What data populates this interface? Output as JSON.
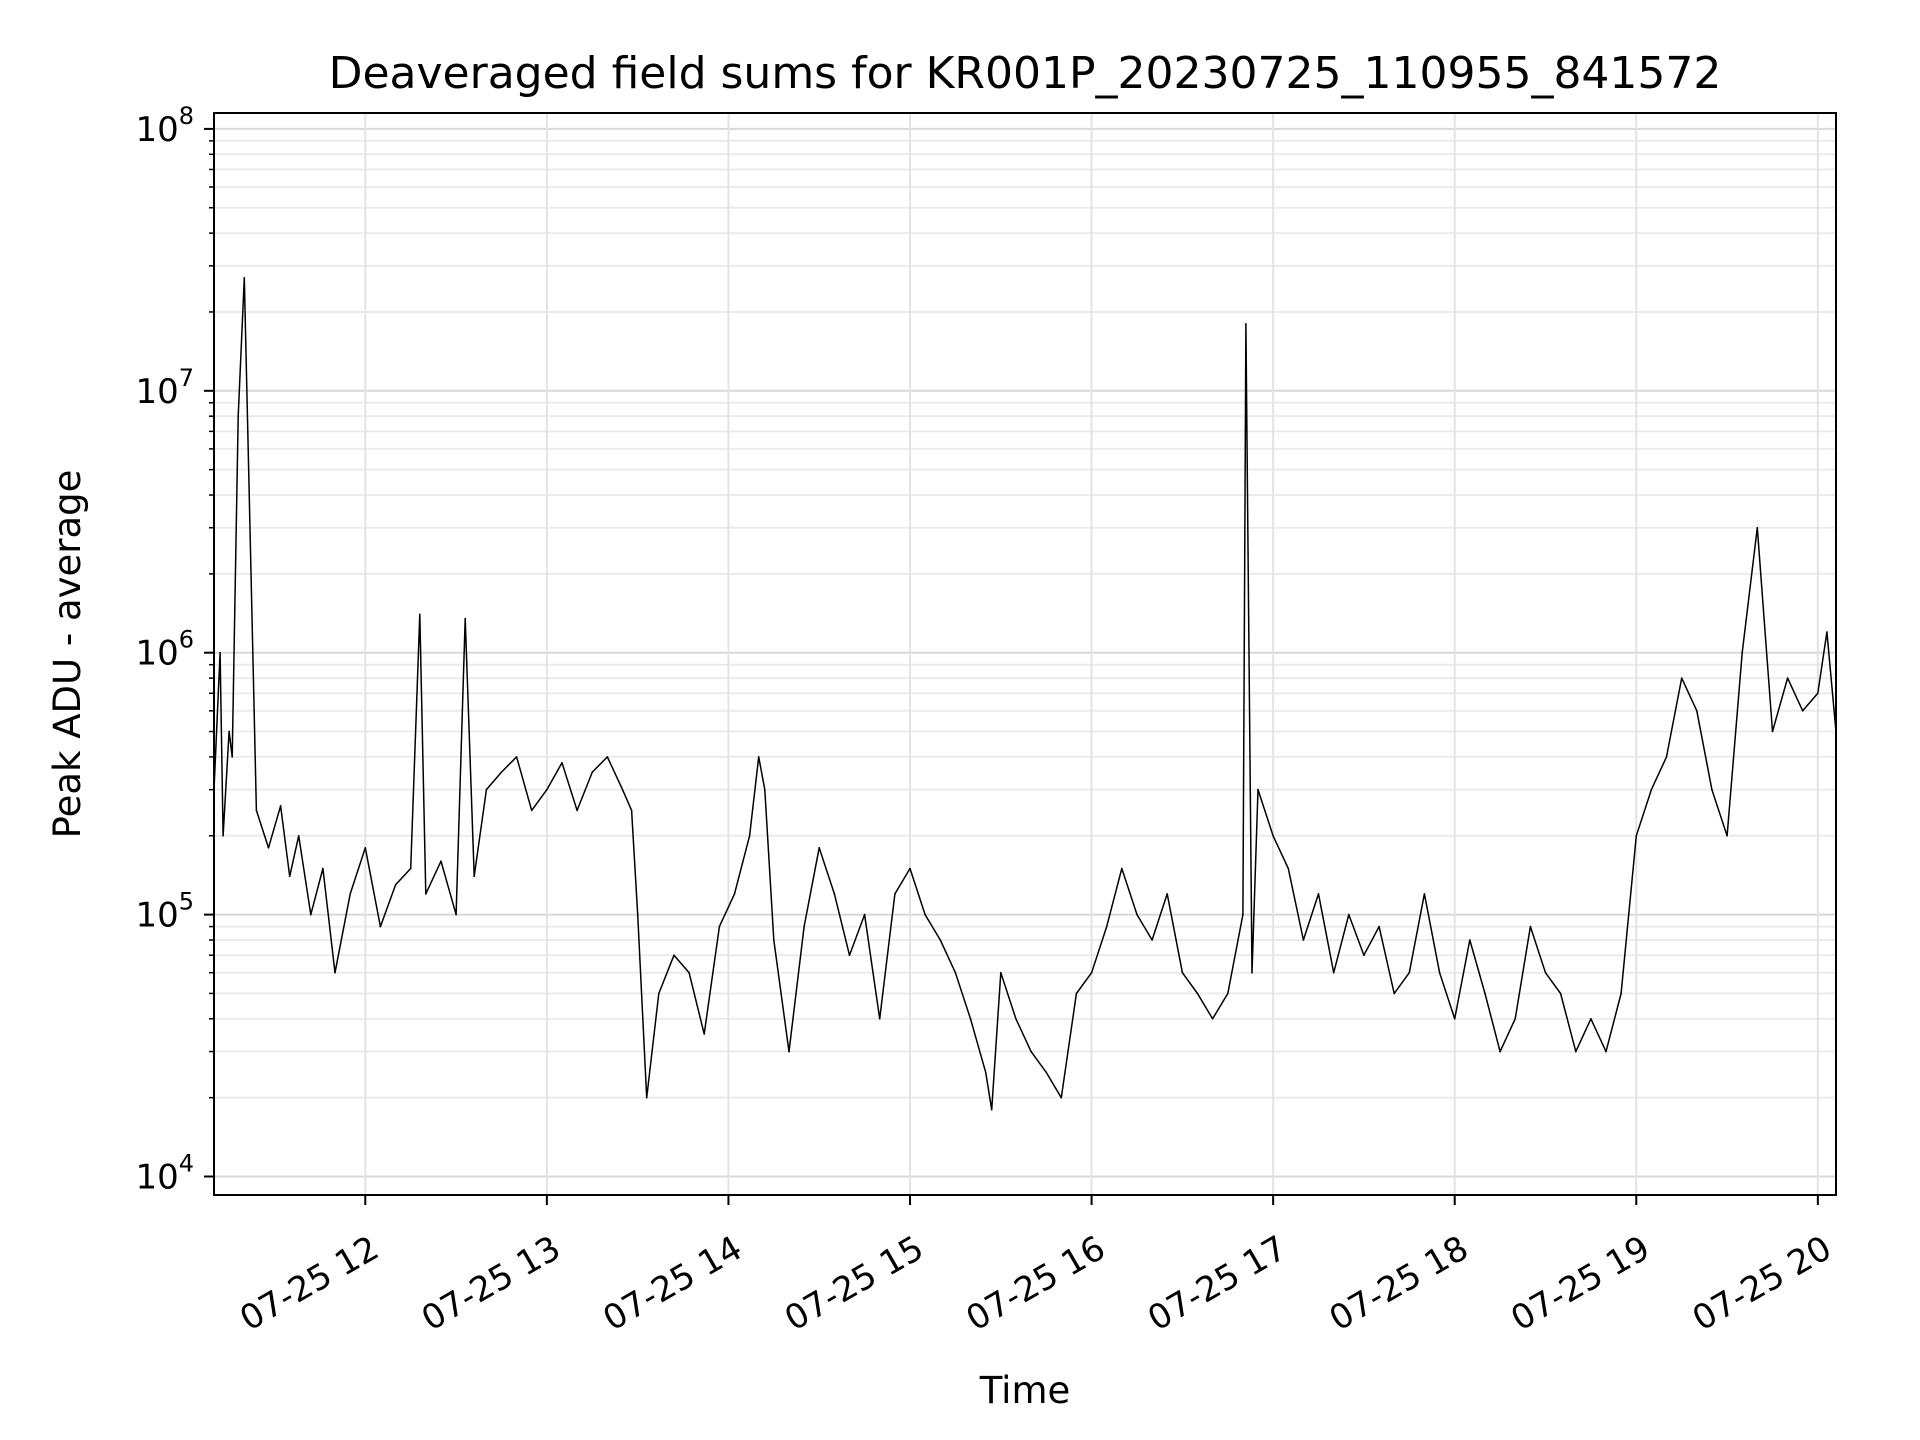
{
  "chart_data": {
    "type": "line",
    "title": "Deaveraged field sums for KR001P_20230725_110955_841572",
    "xlabel": "Time",
    "ylabel": "Peak ADU - average",
    "yscale": "log",
    "ylim": [
      8500,
      115000000
    ],
    "xlim": [
      "07-25 11:10",
      "07-25 20:06"
    ],
    "grid": true,
    "line_color": "#000000",
    "x_ticks": [
      "07-25 12",
      "07-25 13",
      "07-25 14",
      "07-25 15",
      "07-25 16",
      "07-25 17",
      "07-25 18",
      "07-25 19",
      "07-25 20"
    ],
    "y_ticks": [
      {
        "value": 10000,
        "base": "10",
        "exp": "4"
      },
      {
        "value": 100000,
        "base": "10",
        "exp": "5"
      },
      {
        "value": 1000000,
        "base": "10",
        "exp": "6"
      },
      {
        "value": 10000000,
        "base": "10",
        "exp": "7"
      },
      {
        "value": 100000000,
        "base": "10",
        "exp": "8"
      }
    ],
    "series": [
      {
        "x": [
          "07-25 11:10",
          "07-25 11:12",
          "07-25 11:13",
          "07-25 11:15",
          "07-25 11:16",
          "07-25 11:18",
          "07-25 11:20",
          "07-25 11:24",
          "07-25 11:28",
          "07-25 11:32",
          "07-25 11:35",
          "07-25 11:38",
          "07-25 11:42",
          "07-25 11:46",
          "07-25 11:50",
          "07-25 11:55",
          "07-25 12:00",
          "07-25 12:05",
          "07-25 12:10",
          "07-25 12:15",
          "07-25 12:18",
          "07-25 12:20",
          "07-25 12:25",
          "07-25 12:30",
          "07-25 12:33",
          "07-25 12:36",
          "07-25 12:40",
          "07-25 12:45",
          "07-25 12:50",
          "07-25 12:55",
          "07-25 13:00",
          "07-25 13:05",
          "07-25 13:10",
          "07-25 13:15",
          "07-25 13:20",
          "07-25 13:25",
          "07-25 13:28",
          "07-25 13:30",
          "07-25 13:33",
          "07-25 13:37",
          "07-25 13:42",
          "07-25 13:47",
          "07-25 13:52",
          "07-25 13:57",
          "07-25 14:02",
          "07-25 14:07",
          "07-25 14:10",
          "07-25 14:12",
          "07-25 14:15",
          "07-25 14:20",
          "07-25 14:25",
          "07-25 14:30",
          "07-25 14:35",
          "07-25 14:40",
          "07-25 14:45",
          "07-25 14:50",
          "07-25 14:55",
          "07-25 15:00",
          "07-25 15:05",
          "07-25 15:10",
          "07-25 15:15",
          "07-25 15:20",
          "07-25 15:25",
          "07-25 15:27",
          "07-25 15:30",
          "07-25 15:35",
          "07-25 15:40",
          "07-25 15:45",
          "07-25 15:50",
          "07-25 15:55",
          "07-25 16:00",
          "07-25 16:05",
          "07-25 16:10",
          "07-25 16:15",
          "07-25 16:20",
          "07-25 16:25",
          "07-25 16:30",
          "07-25 16:35",
          "07-25 16:40",
          "07-25 16:45",
          "07-25 16:50",
          "07-25 16:51",
          "07-25 16:53",
          "07-25 16:55",
          "07-25 17:00",
          "07-25 17:05",
          "07-25 17:10",
          "07-25 17:15",
          "07-25 17:20",
          "07-25 17:25",
          "07-25 17:30",
          "07-25 17:35",
          "07-25 17:40",
          "07-25 17:45",
          "07-25 17:50",
          "07-25 17:55",
          "07-25 18:00",
          "07-25 18:05",
          "07-25 18:10",
          "07-25 18:15",
          "07-25 18:20",
          "07-25 18:25",
          "07-25 18:30",
          "07-25 18:35",
          "07-25 18:40",
          "07-25 18:45",
          "07-25 18:50",
          "07-25 18:55",
          "07-25 19:00",
          "07-25 19:05",
          "07-25 19:10",
          "07-25 19:15",
          "07-25 19:20",
          "07-25 19:25",
          "07-25 19:30",
          "07-25 19:35",
          "07-25 19:40",
          "07-25 19:45",
          "07-25 19:50",
          "07-25 19:55",
          "07-25 20:00",
          "07-25 20:03",
          "07-25 20:06"
        ],
        "y": [
          300000,
          1000000,
          200000,
          500000,
          400000,
          8000000,
          27000000,
          250000,
          180000,
          260000,
          140000,
          200000,
          100000,
          150000,
          60000,
          120000,
          180000,
          90000,
          130000,
          150000,
          1400000,
          120000,
          160000,
          100000,
          1350000,
          140000,
          300000,
          350000,
          400000,
          250000,
          300000,
          380000,
          250000,
          350000,
          400000,
          300000,
          250000,
          100000,
          20000,
          50000,
          70000,
          60000,
          35000,
          90000,
          120000,
          200000,
          400000,
          300000,
          80000,
          30000,
          90000,
          180000,
          120000,
          70000,
          100000,
          40000,
          120000,
          150000,
          100000,
          80000,
          60000,
          40000,
          25000,
          18000,
          60000,
          40000,
          30000,
          25000,
          20000,
          50000,
          60000,
          90000,
          150000,
          100000,
          80000,
          120000,
          60000,
          50000,
          40000,
          50000,
          100000,
          18000000,
          60000,
          300000,
          200000,
          150000,
          80000,
          120000,
          60000,
          100000,
          70000,
          90000,
          50000,
          60000,
          120000,
          60000,
          40000,
          80000,
          50000,
          30000,
          40000,
          90000,
          60000,
          50000,
          30000,
          40000,
          30000,
          50000,
          200000,
          300000,
          400000,
          800000,
          600000,
          300000,
          200000,
          1000000,
          3000000,
          500000,
          800000,
          600000,
          700000,
          1200000,
          500000
        ]
      }
    ]
  }
}
